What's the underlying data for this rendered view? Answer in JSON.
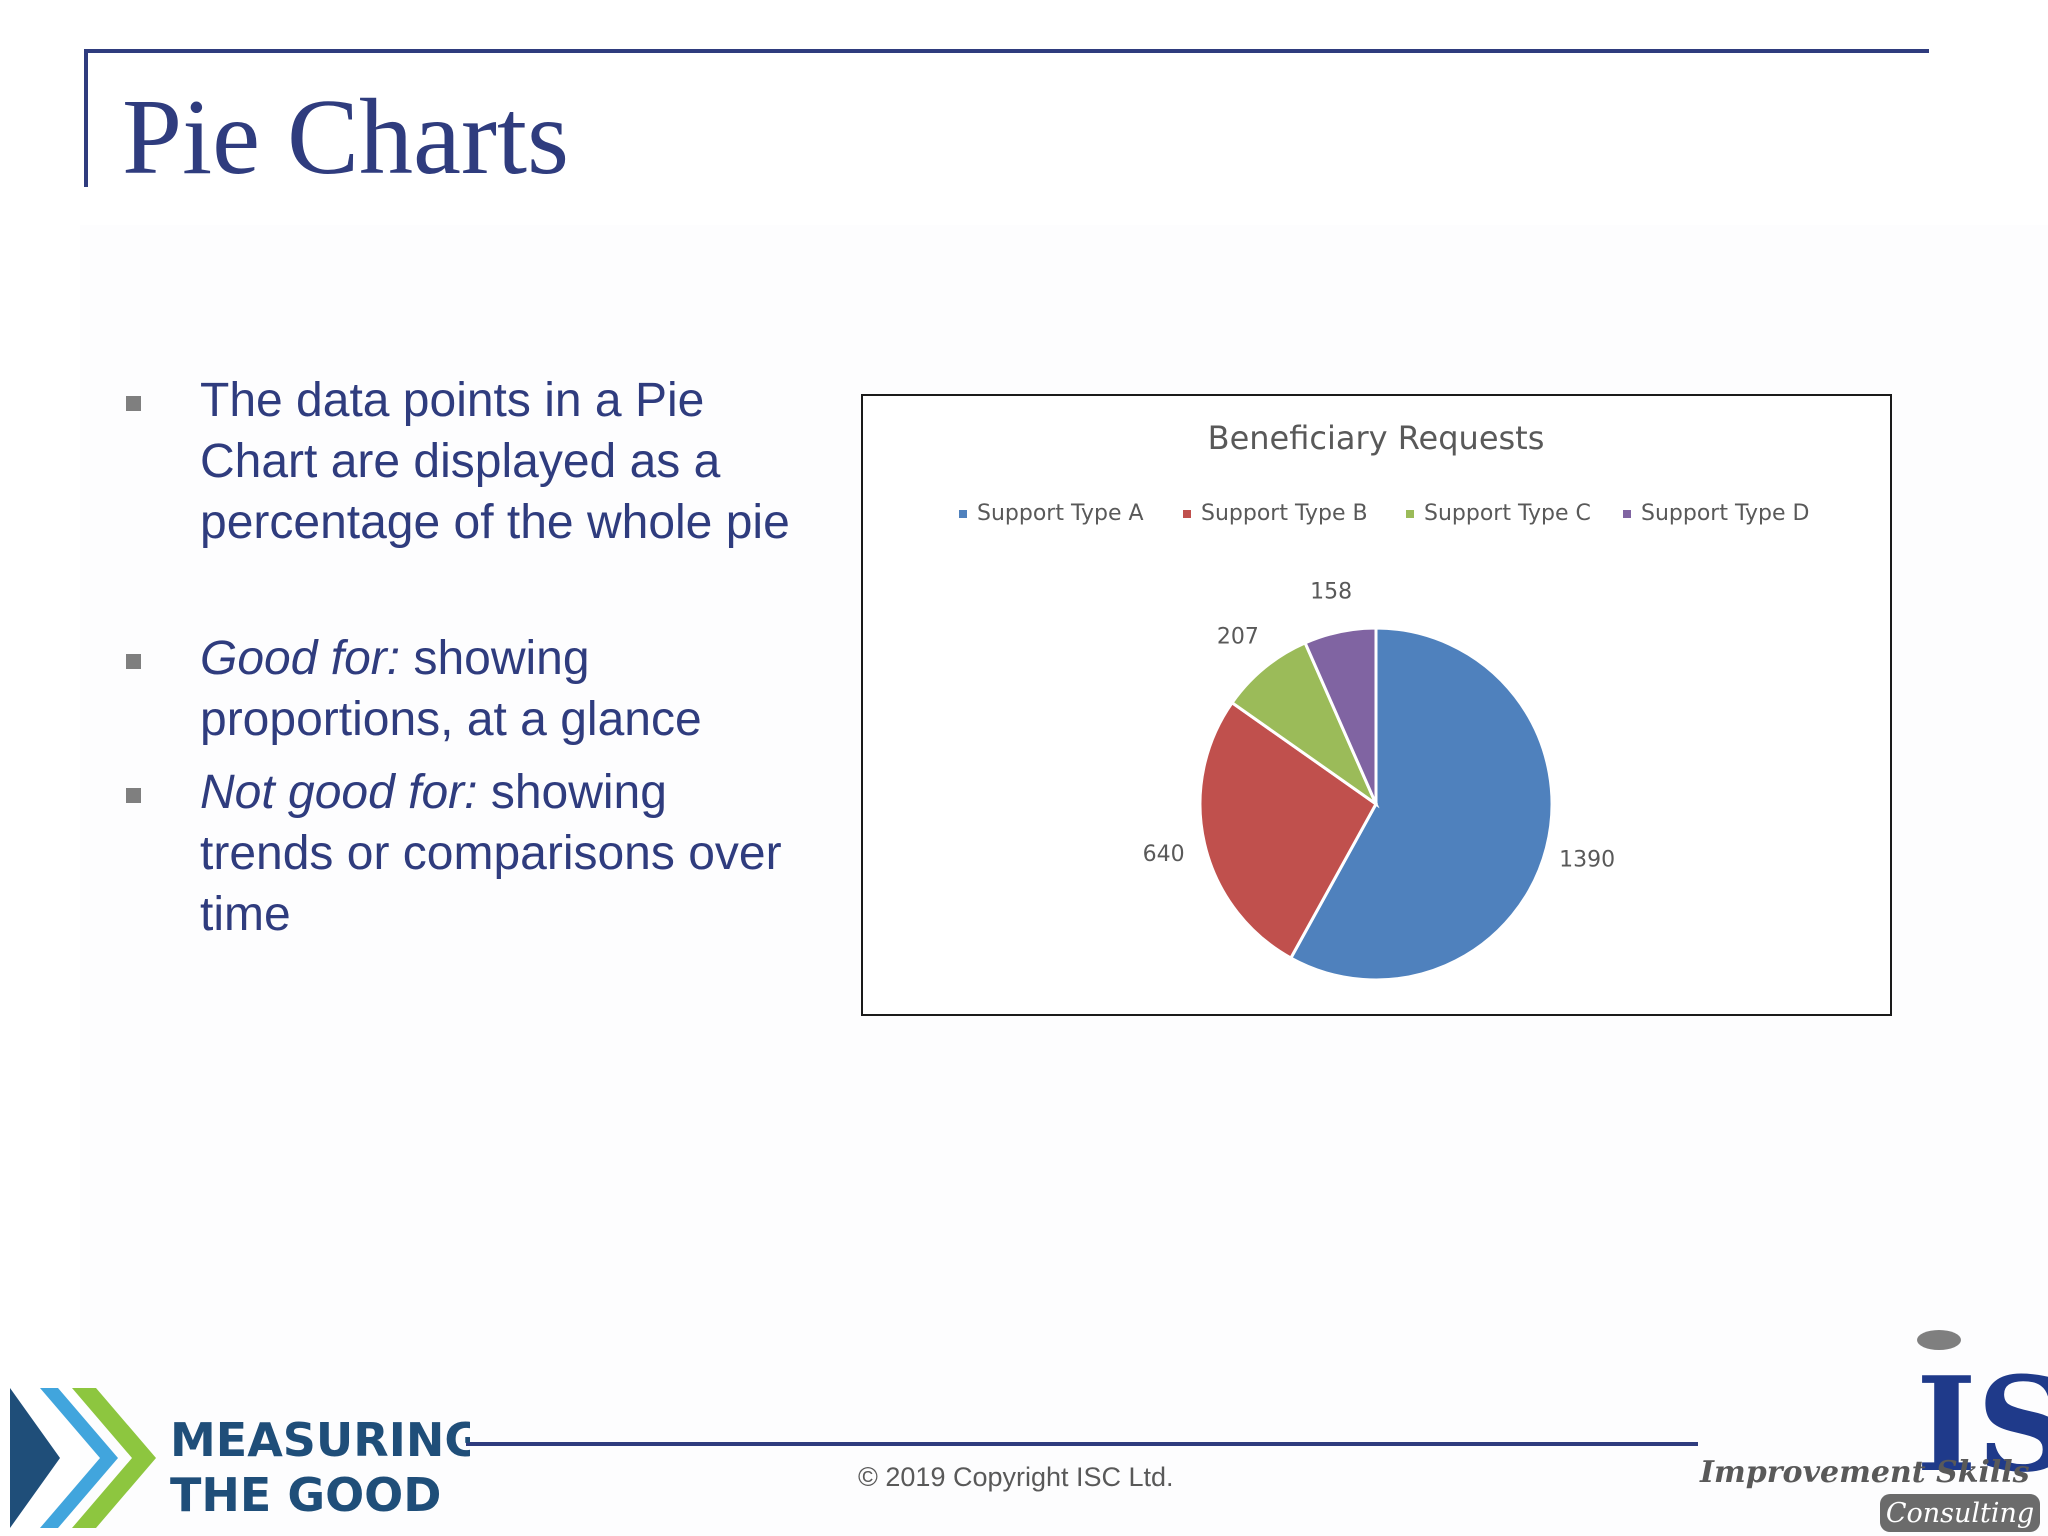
{
  "slide": {
    "title": "Pie Charts",
    "bullets": [
      {
        "lead": "",
        "text": "The data points in a Pie Chart are displayed as a percentage of the whole pie"
      },
      {
        "lead": "Good for:",
        "text": " showing proportions, at a glance"
      },
      {
        "lead": "Not good for:",
        "text": " showing trends or comparisons over time"
      }
    ]
  },
  "chart_data": {
    "type": "pie",
    "title": "Beneficiary Requests",
    "categories": [
      "Support Type A",
      "Support Type B",
      "Support Type C",
      "Support Type D"
    ],
    "values": [
      1390,
      640,
      207,
      158
    ],
    "colors": [
      "#4f81bd",
      "#c0504d",
      "#9bbb59",
      "#8064a2"
    ],
    "legend": "top",
    "data_labels": true
  },
  "footer": {
    "copyright": "© 2019 Copyright ISC Ltd.",
    "left_logo": {
      "line1": "MEASURING",
      "line2": "THE GOOD"
    },
    "right_logo": {
      "mark": "IS",
      "line1": "Improvement Skills",
      "line2": "Consulting"
    }
  }
}
